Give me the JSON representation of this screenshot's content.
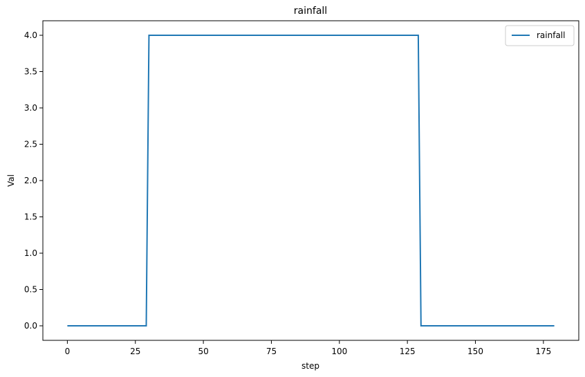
{
  "chart_data": {
    "type": "line",
    "title": "rainfall",
    "xlabel": "step",
    "ylabel": "Val",
    "xlim": [
      -9,
      188
    ],
    "ylim": [
      -0.2,
      4.2
    ],
    "x_ticks": [
      0,
      25,
      50,
      75,
      100,
      125,
      150,
      175
    ],
    "y_ticks": [
      0.0,
      0.5,
      1.0,
      1.5,
      2.0,
      2.5,
      3.0,
      3.5,
      4.0
    ],
    "x_tick_labels": [
      "0",
      "25",
      "50",
      "75",
      "100",
      "125",
      "150",
      "175"
    ],
    "y_tick_labels": [
      "0.0",
      "0.5",
      "1.0",
      "1.5",
      "2.0",
      "2.5",
      "3.0",
      "3.5",
      "4.0"
    ],
    "grid": false,
    "legend_position": "top-right",
    "series": [
      {
        "name": "rainfall",
        "color": "#1f77b4",
        "x": [
          0,
          29,
          30,
          129,
          130,
          179
        ],
        "y": [
          0,
          0,
          4,
          4,
          0,
          0
        ]
      }
    ]
  }
}
